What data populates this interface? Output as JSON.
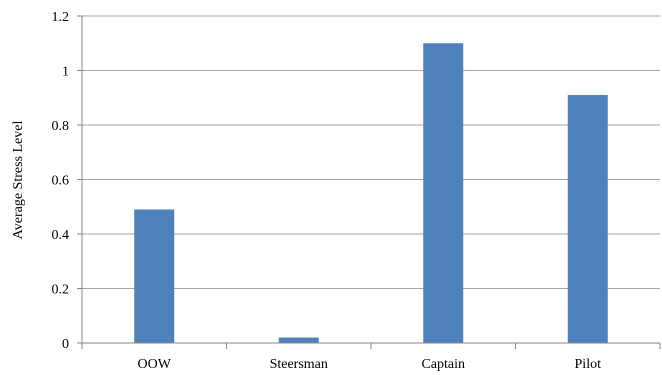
{
  "chart_data": {
    "type": "bar",
    "title": "",
    "xlabel": "",
    "ylabel": "Average Stress Level",
    "categories": [
      "OOW",
      "Steersman",
      "Captain",
      "Pilot"
    ],
    "values": [
      0.49,
      0.02,
      1.1,
      0.91
    ],
    "yticks": [
      "0",
      "0.2",
      "0.4",
      "0.6",
      "0.8",
      "1",
      "1.2"
    ],
    "ylim": [
      0,
      1.2
    ],
    "grid": true,
    "legend": "none",
    "bar_color": "#4F81BD",
    "grid_color": "#A6A6A6",
    "axis_color": "#868686"
  }
}
